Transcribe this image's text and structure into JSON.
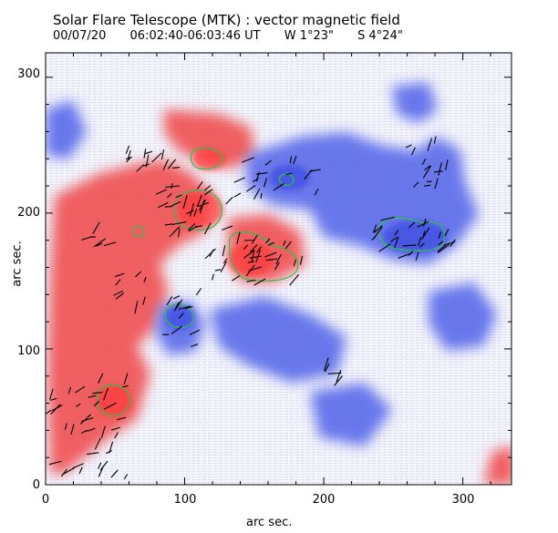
{
  "header": {
    "title": "Solar Flare Telescope (MTK) : vector magnetic field",
    "date": "00/07/20",
    "time_range": "06:02:40-06:03:46 UT",
    "lon": "W 1°23\"",
    "lat": "S 4°24\""
  },
  "axes": {
    "xlabel": "arc sec.",
    "ylabel": "arc sec.",
    "xticks": [
      "0",
      "100",
      "200",
      "300"
    ],
    "yticks": [
      "0",
      "100",
      "200",
      "300"
    ],
    "xlim": [
      0,
      335
    ],
    "ylim": [
      0,
      318
    ]
  },
  "colors": {
    "positive": "#f0585a",
    "negative": "#5a6aea",
    "contour": "#2ec24a",
    "vector": "#000000"
  }
}
